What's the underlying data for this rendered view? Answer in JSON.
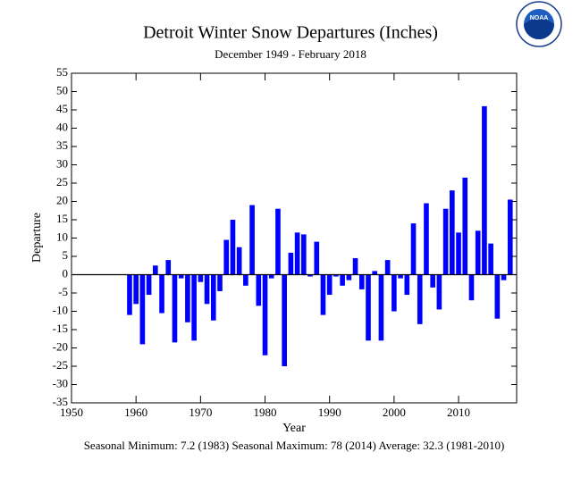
{
  "chart_data": {
    "type": "bar",
    "title": "Detroit Winter Snow Departures (Inches)",
    "subtitle": "December 1949 - February 2018",
    "x_label": "Year",
    "y_label": "Departure",
    "footer": "Seasonal Minimum: 7.2 (1983) Seasonal Maximum: 78 (2014) Average: 32.3 (1981-2010)",
    "logo": "NOAA",
    "color": "#0000ff",
    "x": [
      1959,
      1960,
      1961,
      1962,
      1963,
      1964,
      1965,
      1966,
      1967,
      1968,
      1969,
      1970,
      1971,
      1972,
      1973,
      1974,
      1975,
      1976,
      1977,
      1978,
      1979,
      1980,
      1981,
      1982,
      1983,
      1984,
      1985,
      1986,
      1987,
      1988,
      1989,
      1990,
      1991,
      1992,
      1993,
      1994,
      1995,
      1996,
      1997,
      1998,
      1999,
      2000,
      2001,
      2002,
      2003,
      2004,
      2005,
      2006,
      2007,
      2008,
      2009,
      2010,
      2011,
      2012,
      2013,
      2014,
      2015,
      2016,
      2017,
      2018
    ],
    "values": [
      -11,
      -8,
      -19,
      -5.5,
      2.5,
      -10.5,
      4,
      -18.5,
      -1,
      -13,
      -18,
      -2,
      -8,
      -12.5,
      -4.5,
      9.5,
      15,
      7.5,
      -3,
      19,
      -8.5,
      -22,
      -1,
      18,
      -25,
      6,
      11.5,
      11,
      -0.5,
      9,
      -11,
      -5.5,
      -0.5,
      -3,
      -1.5,
      4.5,
      -4,
      -18,
      1,
      -18,
      4,
      -10,
      -1,
      -5.5,
      14,
      -13.5,
      19.5,
      -3.5,
      -9.5,
      18,
      23,
      11.5,
      26.5,
      -7,
      12,
      46,
      8.5,
      -12,
      -1.5,
      20.5
    ],
    "xlim": [
      1950,
      2019
    ],
    "xticks": [
      1950,
      1960,
      1970,
      1980,
      1990,
      2000,
      2010
    ],
    "ylim": [
      -35,
      55
    ],
    "yticks": [
      -35,
      -30,
      -25,
      -20,
      -15,
      -10,
      -5,
      0,
      5,
      10,
      15,
      20,
      25,
      30,
      35,
      40,
      45,
      50,
      55
    ]
  }
}
